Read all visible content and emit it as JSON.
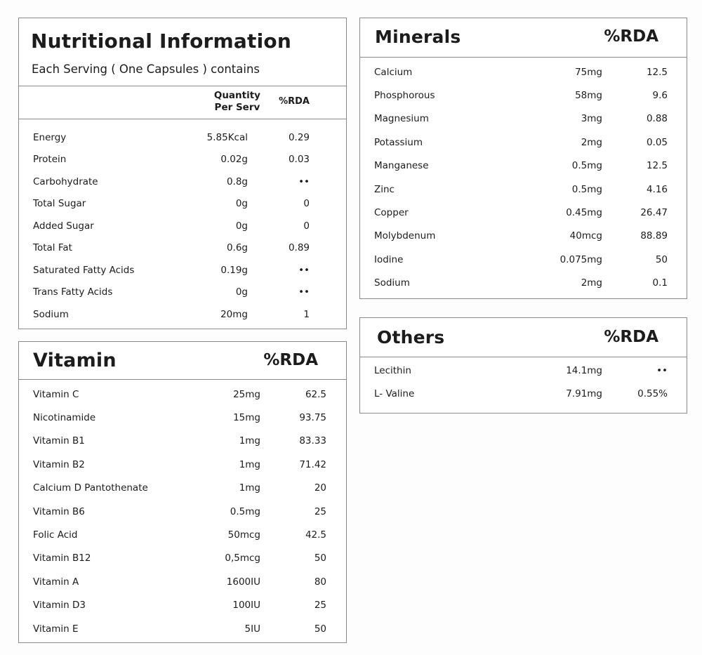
{
  "nutritional": {
    "title": "Nutritional Information",
    "subtitle": "Each Serving ( One Capsules ) contains",
    "col_qty_line1": "Quantity",
    "col_qty_line2": "Per Serv",
    "col_rda": "%RDA",
    "rows": [
      {
        "name": "Energy",
        "qty": "5.85Kcal",
        "rda": "0.29"
      },
      {
        "name": "Protein",
        "qty": "0.02g",
        "rda": "0.03"
      },
      {
        "name": "Carbohydrate",
        "qty": "0.8g",
        "rda": "••"
      },
      {
        "name": "Total Sugar",
        "qty": "0g",
        "rda": "0"
      },
      {
        "name": "Added Sugar",
        "qty": "0g",
        "rda": "0"
      },
      {
        "name": "Total Fat",
        "qty": "0.6g",
        "rda": "0.89"
      },
      {
        "name": "Saturated Fatty Acids",
        "qty": "0.19g",
        "rda": "••"
      },
      {
        "name": "Trans Fatty Acids",
        "qty": "0g",
        "rda": "••"
      },
      {
        "name": "Sodium",
        "qty": "20mg",
        "rda": "1"
      }
    ]
  },
  "vitamin": {
    "title": "Vitamin",
    "col_rda": "%RDA",
    "rows": [
      {
        "name": "Vitamin C",
        "qty": "25mg",
        "rda": "62.5"
      },
      {
        "name": "Nicotinamide",
        "qty": "15mg",
        "rda": "93.75"
      },
      {
        "name": "Vitamin B1",
        "qty": "1mg",
        "rda": "83.33"
      },
      {
        "name": "Vitamin B2",
        "qty": "1mg",
        "rda": "71.42"
      },
      {
        "name": "Calcium D Pantothenate",
        "qty": "1mg",
        "rda": "20"
      },
      {
        "name": "Vitamin B6",
        "qty": "0.5mg",
        "rda": "25"
      },
      {
        "name": "Folic Acid",
        "qty": "50mcg",
        "rda": "42.5"
      },
      {
        "name": "Vitamin B12",
        "qty": "0,5mcg",
        "rda": "50"
      },
      {
        "name": "Vitamin A",
        "qty": "1600IU",
        "rda": "80"
      },
      {
        "name": "Vitamin D3",
        "qty": "100IU",
        "rda": "25"
      },
      {
        "name": "Vitamin E",
        "qty": "5IU",
        "rda": "50"
      }
    ]
  },
  "minerals": {
    "title": "Minerals",
    "col_rda": "%RDA",
    "rows": [
      {
        "name": "Calcium",
        "qty": "75mg",
        "rda": "12.5"
      },
      {
        "name": "Phosphorous",
        "qty": "58mg",
        "rda": "9.6"
      },
      {
        "name": "Magnesium",
        "qty": "3mg",
        "rda": "0.88"
      },
      {
        "name": "Potassium",
        "qty": "2mg",
        "rda": "0.05"
      },
      {
        "name": "Manganese",
        "qty": "0.5mg",
        "rda": "12.5"
      },
      {
        "name": "Zinc",
        "qty": "0.5mg",
        "rda": "4.16"
      },
      {
        "name": "Copper",
        "qty": "0.45mg",
        "rda": "26.47"
      },
      {
        "name": "Molybdenum",
        "qty": "40mcg",
        "rda": "88.89"
      },
      {
        "name": "Iodine",
        "qty": "0.075mg",
        "rda": "50"
      },
      {
        "name": "Sodium",
        "qty": "2mg",
        "rda": "0.1"
      }
    ]
  },
  "others": {
    "title": "Others",
    "col_rda": "%RDA",
    "rows": [
      {
        "name": "Lecithin",
        "qty": "14.1mg",
        "rda": "••"
      },
      {
        "name": "L- Valine",
        "qty": "7.91mg",
        "rda": "0.55%"
      }
    ]
  }
}
